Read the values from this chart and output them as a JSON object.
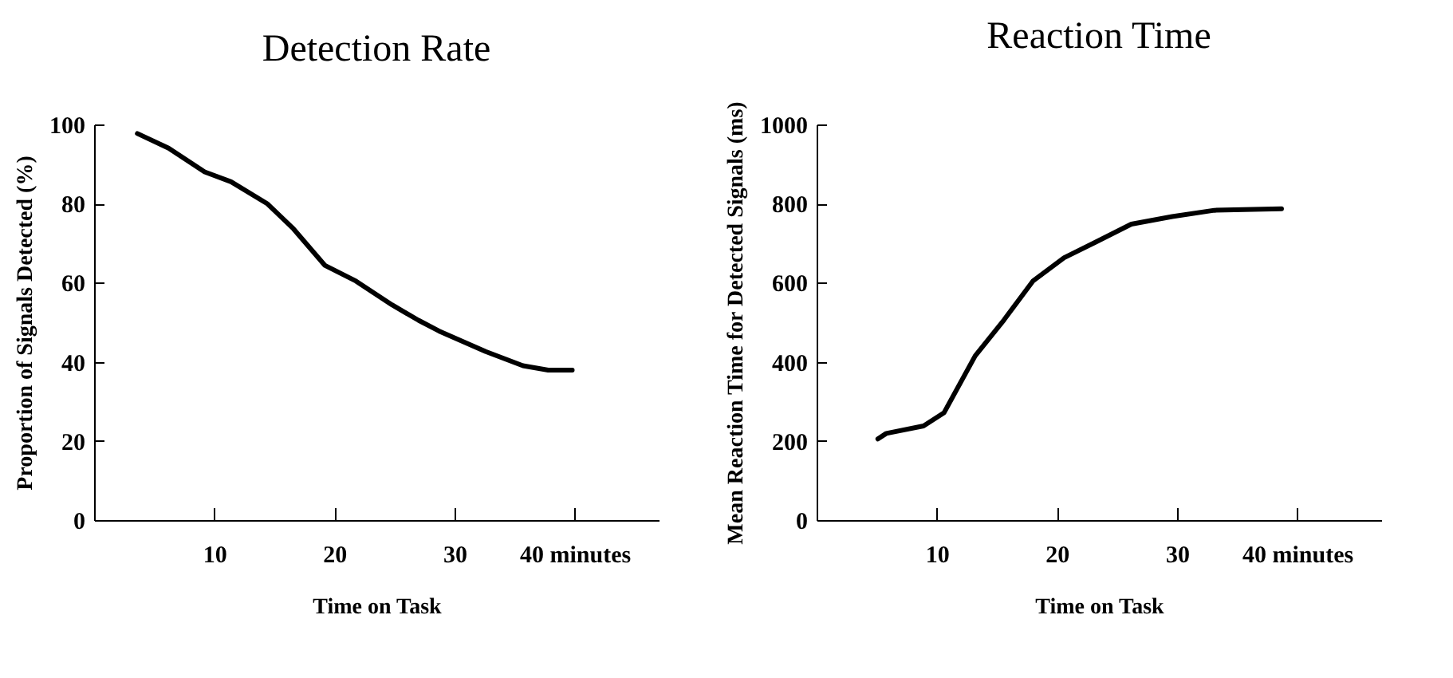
{
  "chart_data": [
    {
      "type": "line",
      "title": "Detection Rate",
      "xlabel": "Time on Task",
      "ylabel": "Proportion of Signals Detected (%)",
      "xlim": [
        0,
        47
      ],
      "xticks": [
        10,
        20,
        30,
        {
          "value": 40,
          "label": "40 minutes"
        }
      ],
      "ylim": [
        0,
        100
      ],
      "yticks": [
        0,
        20,
        40,
        60,
        80,
        100
      ],
      "series": [
        {
          "color": "#000000",
          "x": [
            3.6,
            6.2,
            9.2,
            11.4,
            14.4,
            16.6,
            19.2,
            21.8,
            24.8,
            27,
            28.7,
            32.6,
            35.7,
            37.8,
            39.8
          ],
          "values": [
            97.7,
            94,
            88,
            85.5,
            80,
            73.6,
            64.4,
            60.4,
            54.4,
            50.5,
            47.8,
            42.6,
            39,
            37.9,
            37.9
          ]
        }
      ]
    },
    {
      "type": "line",
      "title": "Reaction Time",
      "xlabel": "Time on Task",
      "ylabel": "Mean Reaction Time for Detected Signals (ms)",
      "xlim": [
        0,
        47
      ],
      "xticks": [
        10,
        20,
        30,
        {
          "value": 40,
          "label": "40 minutes"
        }
      ],
      "ylim": [
        0,
        1000
      ],
      "yticks": [
        0,
        200,
        400,
        600,
        800,
        1000
      ],
      "series": [
        {
          "color": "#000000",
          "x": [
            5.1,
            5.8,
            8.9,
            10.6,
            13.2,
            15.6,
            18,
            20.6,
            23.2,
            26.2,
            29.6,
            33.1,
            38.7
          ],
          "values": [
            205,
            219,
            238,
            271,
            415,
            506,
            604,
            663,
            702,
            748,
            767,
            783,
            787
          ]
        }
      ]
    }
  ]
}
